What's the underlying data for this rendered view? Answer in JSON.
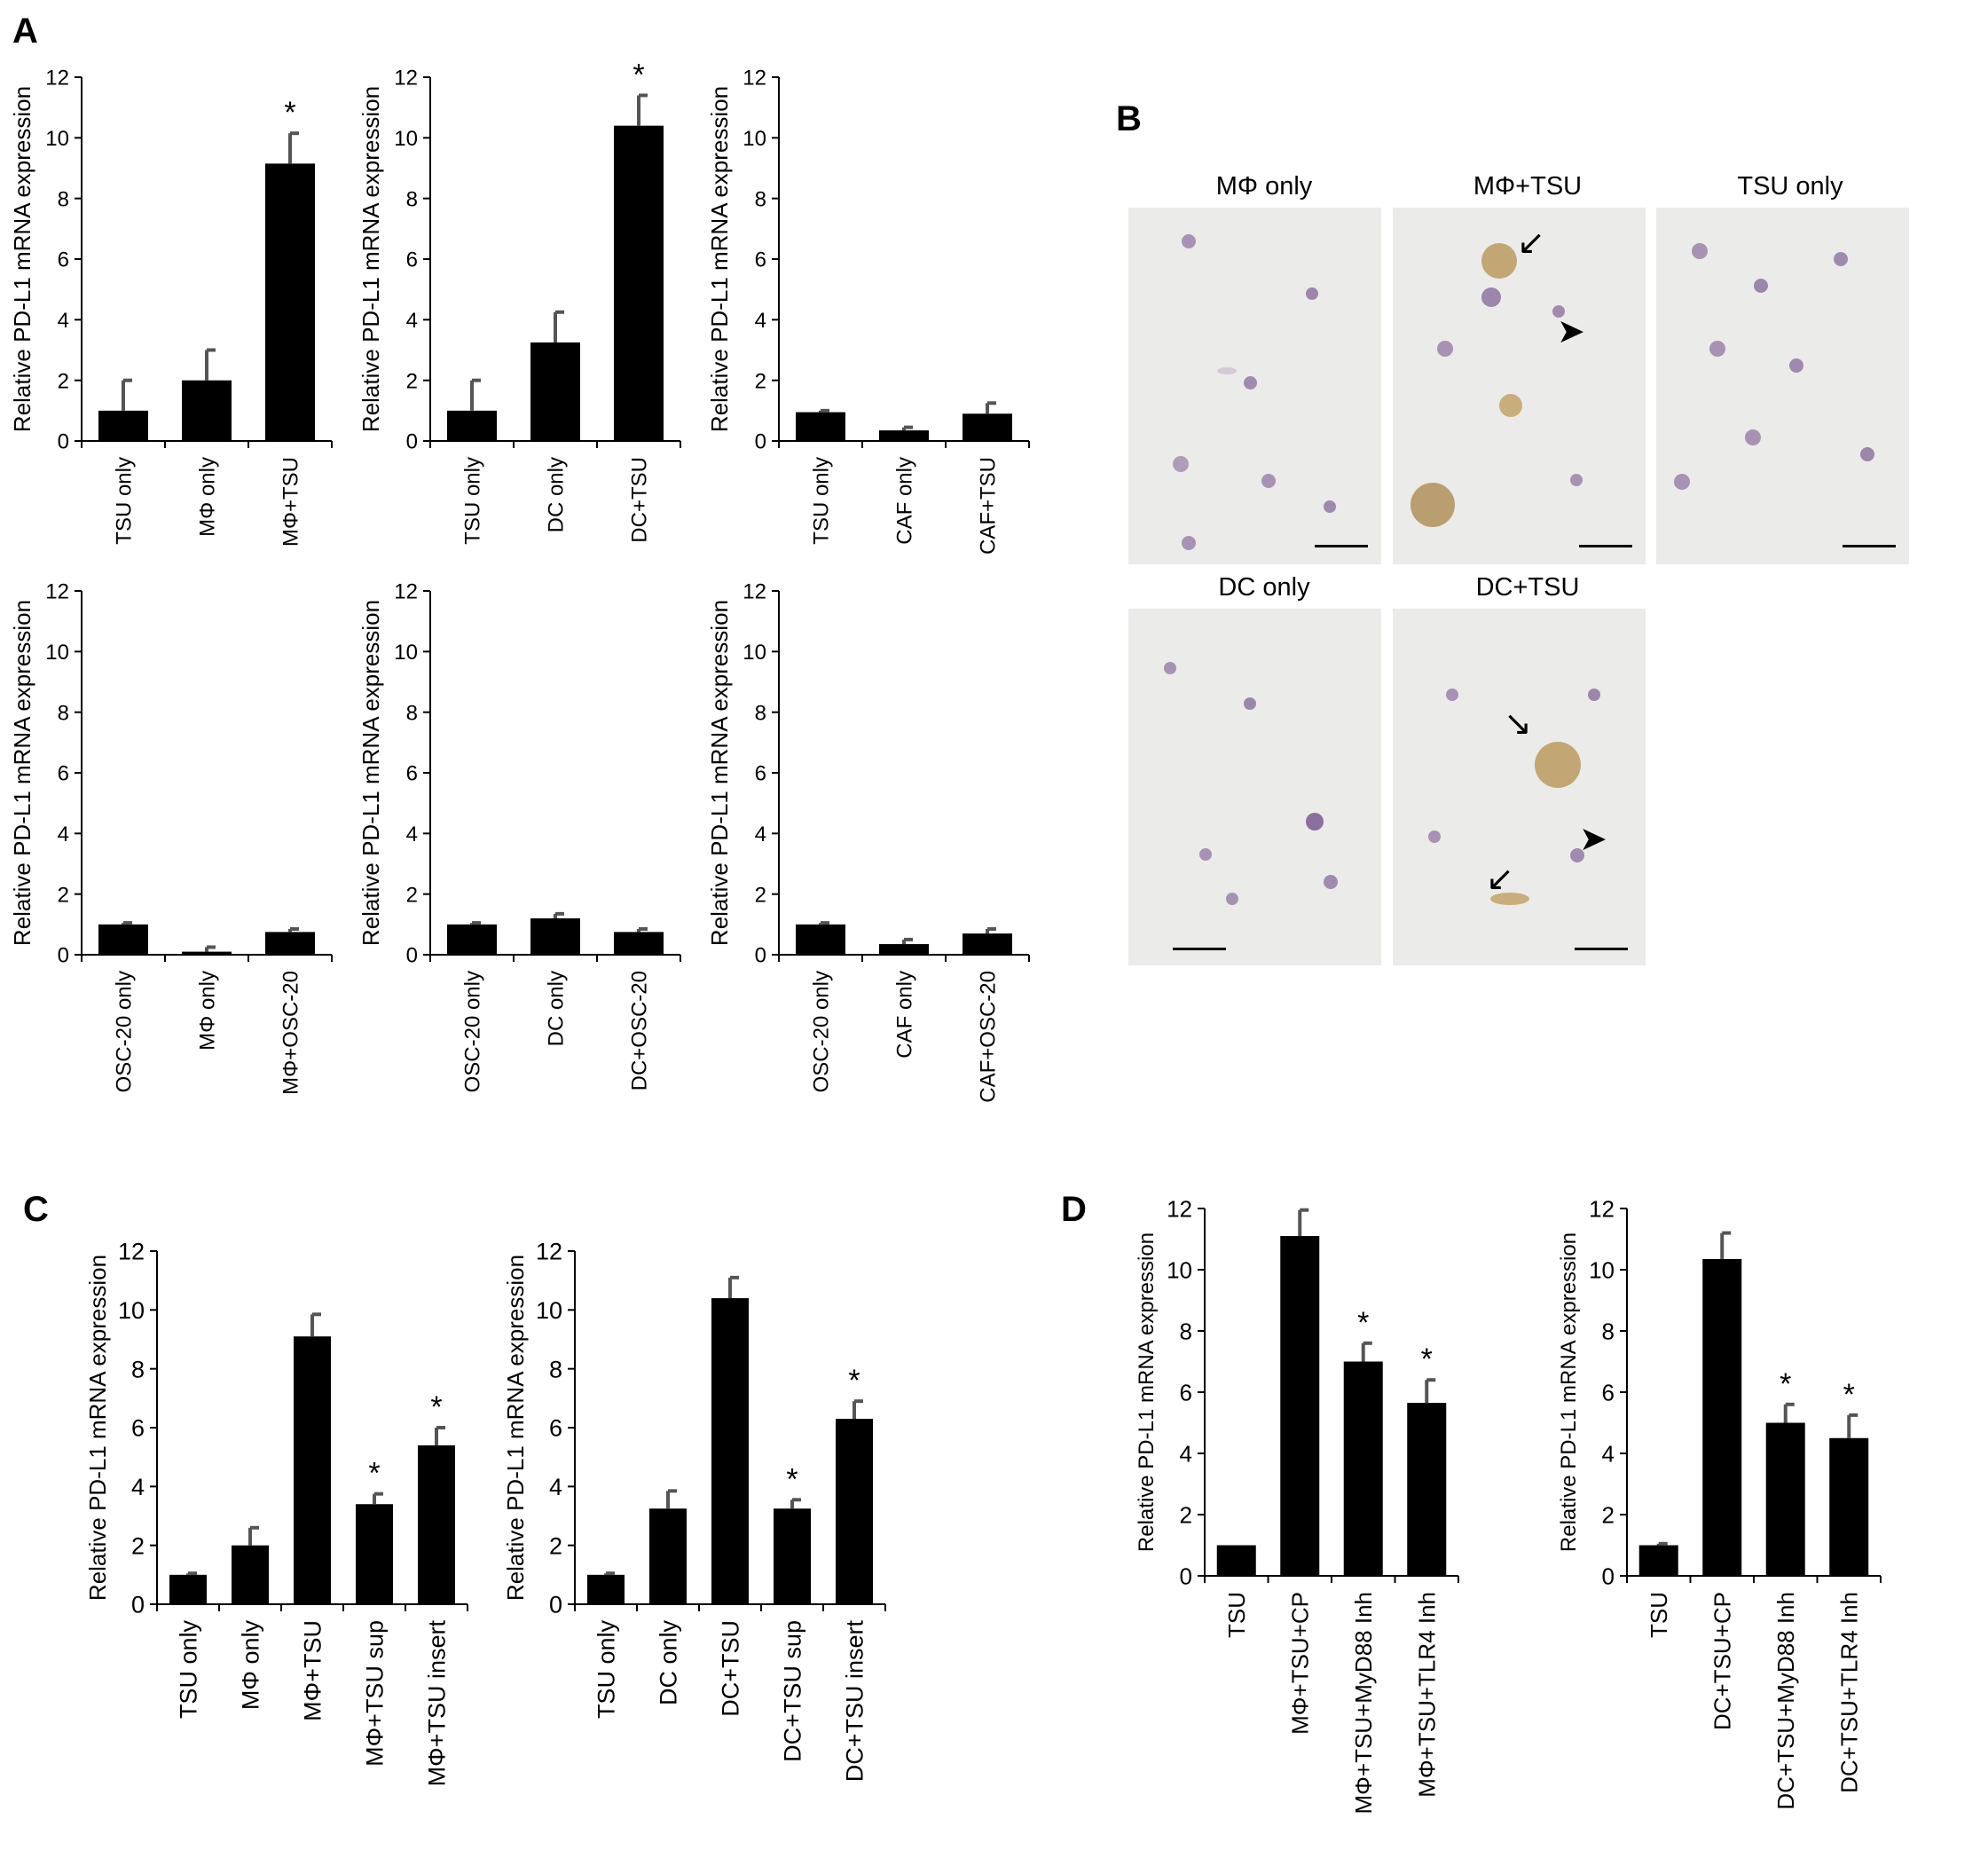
{
  "panel_labels": {
    "a": "A",
    "b": "B",
    "c": "C",
    "d": "D"
  },
  "chart_data": [
    {
      "id": "A1",
      "type": "bar",
      "ylabel": "Relative PD-L1 mRNA expression",
      "ylim": [
        0,
        12
      ],
      "yticks": [
        0,
        2,
        4,
        6,
        8,
        10,
        12
      ],
      "categories": [
        "TSU only",
        "MΦ only",
        "MΦ+TSU"
      ],
      "values": [
        1.0,
        2.0,
        9.15
      ],
      "errors": [
        1.0,
        1.0,
        1.0
      ],
      "annotations": [
        "",
        "",
        "*"
      ]
    },
    {
      "id": "A2",
      "type": "bar",
      "ylabel": "Relative PD-L1 mRNA expression",
      "ylim": [
        0,
        12
      ],
      "yticks": [
        0,
        2,
        4,
        6,
        8,
        10,
        12
      ],
      "categories": [
        "TSU only",
        "DC only",
        "DC+TSU"
      ],
      "values": [
        1.0,
        3.25,
        10.4
      ],
      "errors": [
        1.0,
        1.0,
        1.0
      ],
      "annotations": [
        "",
        "",
        "*"
      ]
    },
    {
      "id": "A3",
      "type": "bar",
      "ylabel": "Relative PD-L1 mRNA expression",
      "ylim": [
        0,
        12
      ],
      "yticks": [
        0,
        2,
        4,
        6,
        8,
        10,
        12
      ],
      "categories": [
        "TSU only",
        "CAF only",
        "CAF+TSU"
      ],
      "values": [
        0.95,
        0.35,
        0.9
      ],
      "errors": [
        0.05,
        0.1,
        0.35
      ],
      "annotations": [
        "",
        "",
        ""
      ]
    },
    {
      "id": "A4",
      "type": "bar",
      "ylabel": "Relative PD-L1 mRNA expression",
      "ylim": [
        0,
        12
      ],
      "yticks": [
        0,
        2,
        4,
        6,
        8,
        10,
        12
      ],
      "categories": [
        "OSC-20 only",
        "MΦ only",
        "MΦ+OSC-20"
      ],
      "values": [
        1.0,
        0.1,
        0.75
      ],
      "errors": [
        0.05,
        0.15,
        0.1
      ],
      "annotations": [
        "",
        "",
        ""
      ]
    },
    {
      "id": "A5",
      "type": "bar",
      "ylabel": "Relative PD-L1 mRNA expression",
      "ylim": [
        0,
        12
      ],
      "yticks": [
        0,
        2,
        4,
        6,
        8,
        10,
        12
      ],
      "categories": [
        "OSC-20 only",
        "DC only",
        "DC+OSC-20"
      ],
      "values": [
        1.0,
        1.2,
        0.75
      ],
      "errors": [
        0.05,
        0.15,
        0.1
      ],
      "annotations": [
        "",
        "",
        ""
      ]
    },
    {
      "id": "A6",
      "type": "bar",
      "ylabel": "Relative PD-L1 mRNA expression",
      "ylim": [
        0,
        12
      ],
      "yticks": [
        0,
        2,
        4,
        6,
        8,
        10,
        12
      ],
      "categories": [
        "OSC-20 only",
        "CAF only",
        "CAF+OSC-20"
      ],
      "values": [
        1.0,
        0.35,
        0.7
      ],
      "errors": [
        0.05,
        0.15,
        0.15
      ],
      "annotations": [
        "",
        "",
        ""
      ]
    },
    {
      "id": "C1",
      "type": "bar",
      "ylabel": "Relative PD-L1 mRNA expression",
      "ylim": [
        0,
        12
      ],
      "yticks": [
        0,
        2,
        4,
        6,
        8,
        10,
        12
      ],
      "categories": [
        "TSU only",
        "MΦ only",
        "MΦ+TSU",
        "MΦ+TSU sup",
        "MΦ+TSU insert"
      ],
      "values": [
        1.0,
        2.0,
        9.1,
        3.4,
        5.4
      ],
      "errors": [
        0.05,
        0.6,
        0.75,
        0.35,
        0.6
      ],
      "annotations": [
        "",
        "",
        "",
        "*",
        "*"
      ]
    },
    {
      "id": "C2",
      "type": "bar",
      "ylabel": "Relative PD-L1 mRNA expression",
      "ylim": [
        0,
        12
      ],
      "yticks": [
        0,
        2,
        4,
        6,
        8,
        10,
        12
      ],
      "categories": [
        "TSU only",
        "DC only",
        "DC+TSU",
        "DC+TSU sup",
        "DC+TSU insert"
      ],
      "values": [
        1.0,
        3.25,
        10.4,
        3.25,
        6.3
      ],
      "errors": [
        0.05,
        0.6,
        0.7,
        0.3,
        0.6
      ],
      "annotations": [
        "",
        "",
        "",
        "*",
        "*"
      ]
    },
    {
      "id": "D1",
      "type": "bar",
      "ylabel": "Relative PD-L1 mRNA expression",
      "ylim": [
        0,
        12
      ],
      "yticks": [
        0,
        2,
        4,
        6,
        8,
        10,
        12
      ],
      "categories": [
        "TSU",
        "MΦ+TSU+CP",
        "MΦ+TSU+MyD88  Inh",
        "MΦ+TSU+TLR4 Inh"
      ],
      "values": [
        1.0,
        11.1,
        7.0,
        5.65
      ],
      "errors": [
        0.0,
        0.85,
        0.6,
        0.75
      ],
      "annotations": [
        "",
        "",
        "*",
        "*"
      ]
    },
    {
      "id": "D2",
      "type": "bar",
      "ylabel": "Relative PD-L1 mRNA expression",
      "ylim": [
        0,
        12
      ],
      "yticks": [
        0,
        2,
        4,
        6,
        8,
        10,
        12
      ],
      "categories": [
        "TSU",
        "DC+TSU+CP",
        "DC+TSU+MyD88 Inh",
        "DC+TSU+TLR4 Inh"
      ],
      "values": [
        1.0,
        10.35,
        5.0,
        4.5
      ],
      "errors": [
        0.05,
        0.85,
        0.6,
        0.75
      ],
      "annotations": [
        "",
        "",
        "*",
        "*"
      ]
    }
  ],
  "micrographs": [
    {
      "title": "MΦ only"
    },
    {
      "title": "MΦ+TSU"
    },
    {
      "title": "TSU only"
    },
    {
      "title": "DC only"
    },
    {
      "title": "DC+TSU"
    }
  ]
}
